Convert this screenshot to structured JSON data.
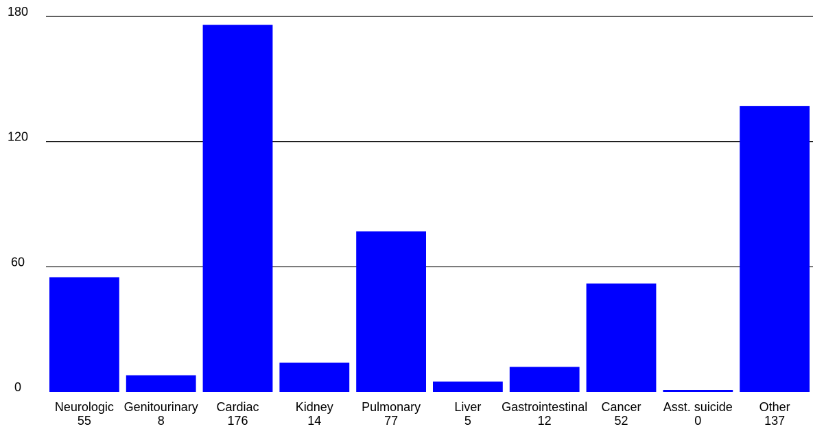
{
  "chart_data": {
    "type": "bar",
    "title": "",
    "xlabel": "",
    "ylabel": "",
    "ylim": [
      0,
      180
    ],
    "yticks": [
      0,
      60,
      120,
      180
    ],
    "grid": true,
    "categories": [
      "Neurologic",
      "Genitourinary",
      "Cardiac",
      "Kidney",
      "Pulmonary",
      "Liver",
      "Gastrointestinal",
      "Cancer",
      "Asst. suicide",
      "Other"
    ],
    "values": [
      55,
      8,
      176,
      14,
      77,
      5,
      12,
      52,
      0,
      137
    ],
    "value_labels": [
      "55",
      "8",
      "176",
      "14",
      "77",
      "5",
      "12",
      "52",
      "0",
      "137"
    ],
    "bar_color": "#0000ff"
  }
}
